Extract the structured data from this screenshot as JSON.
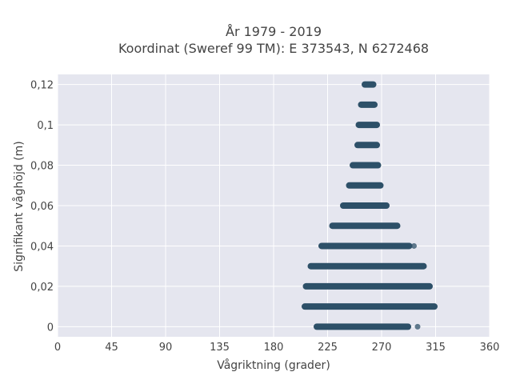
{
  "chart_data": {
    "type": "scatter",
    "title_line1": "År 1979 - 2019",
    "title_line2": "Koordinat (Sweref 99 TM): E 373543, N 6272468",
    "xlabel": "Vågriktning (grader)",
    "ylabel": "Signifikant våghöjd (m)",
    "xlim": [
      0,
      360
    ],
    "ylim": [
      -0.005,
      0.125
    ],
    "xticks": [
      {
        "value": 0,
        "label": "0"
      },
      {
        "value": 45,
        "label": "45"
      },
      {
        "value": 90,
        "label": "90"
      },
      {
        "value": 135,
        "label": "135"
      },
      {
        "value": 180,
        "label": "180"
      },
      {
        "value": 225,
        "label": "225"
      },
      {
        "value": 270,
        "label": "270"
      },
      {
        "value": 315,
        "label": "315"
      },
      {
        "value": 360,
        "label": "360"
      }
    ],
    "yticks": [
      {
        "value": 0,
        "label": "0"
      },
      {
        "value": 0.02,
        "label": "0,02"
      },
      {
        "value": 0.04,
        "label": "0,04"
      },
      {
        "value": 0.06,
        "label": "0,06"
      },
      {
        "value": 0.08,
        "label": "0,08"
      },
      {
        "value": 0.1,
        "label": "0,1"
      },
      {
        "value": 0.12,
        "label": "0,12"
      }
    ],
    "grid": true,
    "marker_color": "#2e5068",
    "background_color": "#e5e6ef",
    "bands": [
      {
        "y": 0.0,
        "x_min": 216,
        "x_max": 292,
        "outliers": [
          300
        ]
      },
      {
        "y": 0.01,
        "x_min": 206,
        "x_max": 314,
        "outliers": []
      },
      {
        "y": 0.02,
        "x_min": 207,
        "x_max": 310,
        "outliers": []
      },
      {
        "y": 0.03,
        "x_min": 211,
        "x_max": 305,
        "outliers": []
      },
      {
        "y": 0.04,
        "x_min": 220,
        "x_max": 293,
        "outliers": [
          297
        ]
      },
      {
        "y": 0.05,
        "x_min": 229,
        "x_max": 283,
        "outliers": []
      },
      {
        "y": 0.06,
        "x_min": 238,
        "x_max": 274,
        "outliers": []
      },
      {
        "y": 0.07,
        "x_min": 243,
        "x_max": 269,
        "outliers": []
      },
      {
        "y": 0.08,
        "x_min": 246,
        "x_max": 267,
        "outliers": []
      },
      {
        "y": 0.09,
        "x_min": 250,
        "x_max": 266,
        "outliers": []
      },
      {
        "y": 0.1,
        "x_min": 251,
        "x_max": 266,
        "outliers": []
      },
      {
        "y": 0.11,
        "x_min": 253,
        "x_max": 264,
        "outliers": []
      },
      {
        "y": 0.12,
        "x_min": 256,
        "x_max": 263,
        "outliers": []
      }
    ]
  }
}
